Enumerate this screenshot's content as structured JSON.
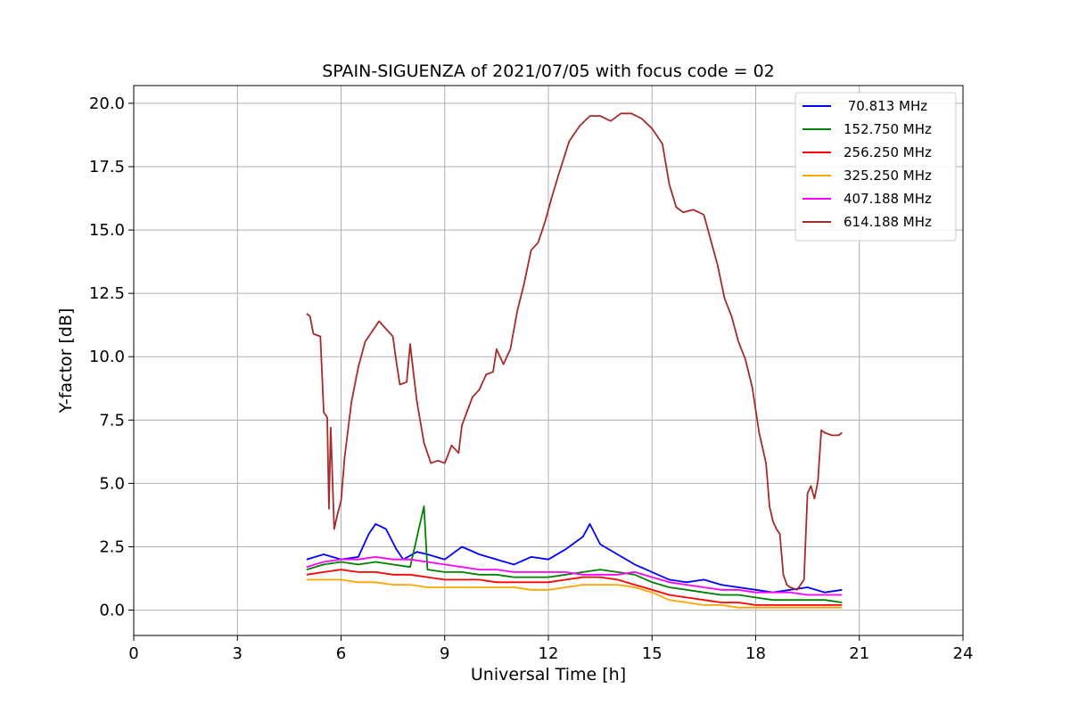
{
  "chart_data": {
    "type": "line",
    "title": "SPAIN-SIGUENZA of 2021/07/05 with focus code = 02",
    "xlabel": "Universal Time [h]",
    "ylabel": "Y-factor [dB]",
    "xlim": [
      0,
      24
    ],
    "ylim": [
      -1.0,
      20.7
    ],
    "xticks": [
      0,
      3,
      6,
      9,
      12,
      15,
      18,
      21,
      24
    ],
    "xtick_labels": [
      "0",
      "3",
      "6",
      "9",
      "12",
      "15",
      "18",
      "21",
      "24"
    ],
    "yticks": [
      0.0,
      2.5,
      5.0,
      7.5,
      10.0,
      12.5,
      15.0,
      17.5,
      20.0
    ],
    "ytick_labels": [
      "0.0",
      "2.5",
      "5.0",
      "7.5",
      "10.0",
      "12.5",
      "15.0",
      "17.5",
      "20.0"
    ],
    "grid": true,
    "legend_position": "top-right",
    "series": [
      {
        "name": " 70.813 MHz",
        "color": "#0000ff",
        "x": [
          5.0,
          5.5,
          6.0,
          6.5,
          6.8,
          7.0,
          7.3,
          7.6,
          7.8,
          8.2,
          8.5,
          9.0,
          9.5,
          10.0,
          10.5,
          11.0,
          11.5,
          12.0,
          12.5,
          13.0,
          13.2,
          13.5,
          14.0,
          14.5,
          15.0,
          15.5,
          16.0,
          16.5,
          17.0,
          17.5,
          18.0,
          18.5,
          19.0,
          19.5,
          20.0,
          20.5
        ],
        "y": [
          2.0,
          2.2,
          2.0,
          2.1,
          3.0,
          3.4,
          3.2,
          2.4,
          2.0,
          2.3,
          2.2,
          2.0,
          2.5,
          2.2,
          2.0,
          1.8,
          2.1,
          2.0,
          2.4,
          2.9,
          3.4,
          2.6,
          2.2,
          1.8,
          1.5,
          1.2,
          1.1,
          1.2,
          1.0,
          0.9,
          0.8,
          0.7,
          0.8,
          0.9,
          0.7,
          0.8
        ]
      },
      {
        "name": "152.750 MHz",
        "color": "#008000",
        "x": [
          5.0,
          5.5,
          6.0,
          6.5,
          7.0,
          7.5,
          8.0,
          8.4,
          8.5,
          9.0,
          9.5,
          10.0,
          10.5,
          11.0,
          11.5,
          12.0,
          12.5,
          13.0,
          13.5,
          14.0,
          14.5,
          15.0,
          15.5,
          16.0,
          16.5,
          17.0,
          17.5,
          18.0,
          18.5,
          19.0,
          19.5,
          20.0,
          20.5
        ],
        "y": [
          1.6,
          1.8,
          1.9,
          1.8,
          1.9,
          1.8,
          1.7,
          4.1,
          1.6,
          1.5,
          1.5,
          1.4,
          1.4,
          1.3,
          1.3,
          1.3,
          1.4,
          1.5,
          1.6,
          1.5,
          1.4,
          1.1,
          0.9,
          0.8,
          0.7,
          0.6,
          0.6,
          0.5,
          0.4,
          0.4,
          0.4,
          0.4,
          0.3
        ]
      },
      {
        "name": "256.250 MHz",
        "color": "#ff0000",
        "x": [
          5.0,
          5.5,
          6.0,
          6.5,
          7.0,
          7.5,
          8.0,
          8.5,
          9.0,
          9.5,
          10.0,
          10.5,
          11.0,
          11.5,
          12.0,
          12.5,
          13.0,
          13.5,
          14.0,
          14.5,
          15.0,
          15.5,
          16.0,
          16.5,
          17.0,
          17.5,
          18.0,
          18.5,
          19.0,
          19.5,
          20.0,
          20.5
        ],
        "y": [
          1.4,
          1.5,
          1.6,
          1.5,
          1.5,
          1.4,
          1.4,
          1.3,
          1.2,
          1.2,
          1.2,
          1.1,
          1.1,
          1.1,
          1.1,
          1.2,
          1.3,
          1.3,
          1.2,
          1.0,
          0.8,
          0.6,
          0.5,
          0.4,
          0.3,
          0.3,
          0.2,
          0.2,
          0.2,
          0.2,
          0.2,
          0.2
        ]
      },
      {
        "name": "325.250 MHz",
        "color": "#ffa500",
        "x": [
          5.0,
          5.5,
          6.0,
          6.5,
          7.0,
          7.5,
          8.0,
          8.5,
          9.0,
          9.5,
          10.0,
          10.5,
          11.0,
          11.5,
          12.0,
          12.5,
          13.0,
          13.5,
          14.0,
          14.5,
          15.0,
          15.5,
          16.0,
          16.5,
          17.0,
          17.5,
          18.0,
          18.5,
          19.0,
          19.5,
          20.0,
          20.5
        ],
        "y": [
          1.2,
          1.2,
          1.2,
          1.1,
          1.1,
          1.0,
          1.0,
          0.9,
          0.9,
          0.9,
          0.9,
          0.9,
          0.9,
          0.8,
          0.8,
          0.9,
          1.0,
          1.0,
          1.0,
          0.9,
          0.7,
          0.4,
          0.3,
          0.2,
          0.2,
          0.1,
          0.1,
          0.1,
          0.1,
          0.1,
          0.1,
          0.1
        ]
      },
      {
        "name": "407.188 MHz",
        "color": "#ff00ff",
        "x": [
          5.0,
          5.5,
          6.0,
          6.5,
          7.0,
          7.5,
          8.0,
          8.5,
          9.0,
          9.5,
          10.0,
          10.5,
          11.0,
          11.5,
          12.0,
          12.5,
          13.0,
          13.5,
          14.0,
          14.5,
          15.0,
          15.5,
          16.0,
          16.5,
          17.0,
          17.5,
          18.0,
          18.5,
          19.0,
          19.5,
          20.0,
          20.5
        ],
        "y": [
          1.7,
          1.9,
          2.0,
          2.0,
          2.1,
          2.0,
          2.0,
          1.9,
          1.8,
          1.7,
          1.6,
          1.6,
          1.5,
          1.5,
          1.5,
          1.5,
          1.4,
          1.4,
          1.4,
          1.5,
          1.3,
          1.1,
          1.0,
          0.9,
          0.8,
          0.8,
          0.7,
          0.7,
          0.7,
          0.6,
          0.6,
          0.6
        ]
      },
      {
        "name": "614.188 MHz",
        "color": "#a52a2a",
        "x": [
          5.0,
          5.1,
          5.2,
          5.4,
          5.5,
          5.6,
          5.65,
          5.7,
          5.8,
          5.9,
          6.0,
          6.1,
          6.3,
          6.5,
          6.7,
          6.9,
          7.1,
          7.3,
          7.5,
          7.6,
          7.7,
          7.9,
          8.0,
          8.1,
          8.2,
          8.4,
          8.6,
          8.8,
          9.0,
          9.2,
          9.4,
          9.5,
          9.8,
          10.0,
          10.2,
          10.4,
          10.5,
          10.7,
          10.9,
          11.1,
          11.3,
          11.5,
          11.7,
          11.9,
          12.1,
          12.3,
          12.6,
          12.9,
          13.2,
          13.5,
          13.8,
          14.1,
          14.4,
          14.7,
          15.0,
          15.3,
          15.5,
          15.7,
          15.9,
          16.2,
          16.5,
          16.7,
          16.9,
          17.1,
          17.3,
          17.5,
          17.7,
          17.9,
          18.1,
          18.3,
          18.4,
          18.5,
          18.6,
          18.7,
          18.8,
          18.9,
          19.0,
          19.2,
          19.4,
          19.5,
          19.6,
          19.7,
          19.8,
          19.9,
          20.0,
          20.2,
          20.4,
          20.5
        ],
        "y": [
          11.7,
          11.6,
          10.9,
          10.8,
          7.8,
          7.6,
          4.0,
          7.2,
          3.2,
          3.8,
          4.3,
          6.0,
          8.2,
          9.6,
          10.6,
          11.0,
          11.4,
          11.1,
          10.8,
          9.8,
          8.9,
          9.0,
          10.5,
          9.3,
          8.2,
          6.6,
          5.8,
          5.9,
          5.8,
          6.5,
          6.2,
          7.3,
          8.4,
          8.7,
          9.3,
          9.4,
          10.3,
          9.7,
          10.3,
          11.8,
          12.9,
          14.2,
          14.5,
          15.3,
          16.3,
          17.2,
          18.5,
          19.1,
          19.5,
          19.5,
          19.3,
          19.6,
          19.6,
          19.4,
          19.0,
          18.4,
          16.8,
          15.9,
          15.7,
          15.8,
          15.6,
          14.6,
          13.6,
          12.3,
          11.6,
          10.6,
          9.9,
          8.8,
          7.0,
          5.8,
          4.1,
          3.5,
          3.2,
          3.0,
          1.4,
          1.0,
          0.9,
          0.8,
          1.2,
          4.6,
          4.9,
          4.4,
          5.1,
          7.1,
          7.0,
          6.9,
          6.9,
          7.0
        ]
      }
    ]
  }
}
